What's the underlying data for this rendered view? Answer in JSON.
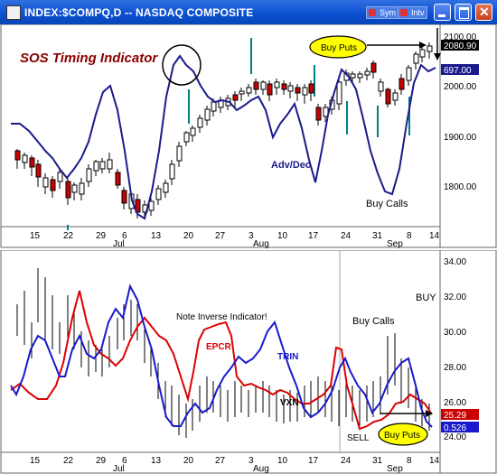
{
  "window": {
    "title": "INDEX:$COMPQ,D -- NASDAQ COMPOSITE",
    "sym_label": "Sym",
    "intv_label": "Intv"
  },
  "top_pane": {
    "indicator_title": "SOS Timing Indicator",
    "label_adv_dec": "Adv/Dec",
    "label_buy_calls": "Buy Calls",
    "label_buy_puts": "Buy Puts",
    "price_last": "2080.90",
    "adv_dec_value": "697.00",
    "price_ticks": [
      "2100.00",
      "2000.00",
      "1900.00",
      "1800.00"
    ],
    "x_ticks": [
      "15",
      "22",
      "29",
      "6",
      "13",
      "20",
      "27",
      "3",
      "10",
      "17",
      "24",
      "31",
      "8",
      "14"
    ],
    "month_labels": [
      "Jul",
      "Aug",
      "Sep"
    ]
  },
  "bottom_pane": {
    "label_note": "Note Inverse Indicator!",
    "label_epcr": "EPCR",
    "label_trin": "TRIN",
    "label_vxn": "VXN",
    "label_buy": "BUY",
    "label_buy_calls": "Buy Calls",
    "label_sell": "SELL",
    "label_buy_puts": "Buy Puts",
    "y_ticks": [
      "34.00",
      "32.00",
      "30.00",
      "28.00",
      "26.00",
      "24.00"
    ],
    "value_red": "25.29",
    "value_blue": "0.526",
    "x_ticks": [
      "15",
      "22",
      "29",
      "6",
      "13",
      "20",
      "27",
      "3",
      "10",
      "17",
      "24",
      "31",
      "8",
      "14"
    ],
    "month_labels": [
      "Jul",
      "Aug",
      "Sep"
    ]
  },
  "colors": {
    "titlebar": "#0a4fd0",
    "price_up": "#ffffff",
    "price_down": "#cc0000",
    "adv_dec_line": "#1a1a8c",
    "signal_tick": "#008080",
    "epcr_line": "#dd0000",
    "trin_line": "#1a1acc",
    "buy_puts_badge": "#ffff00",
    "value_red_bg": "#cc0000",
    "value_blue_bg": "#1a1acc"
  }
}
